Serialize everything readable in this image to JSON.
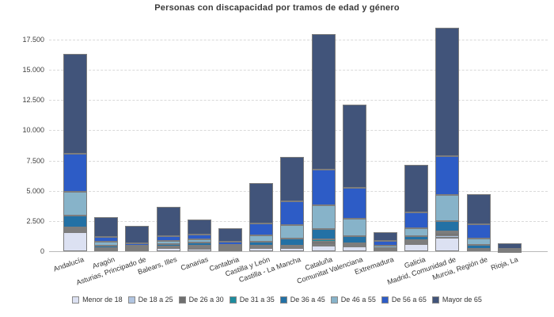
{
  "chart_data": {
    "type": "bar",
    "stacked": true,
    "title": "Personas con discapacidad por tramos de edad y género",
    "legend_position": "bottom",
    "grid": "horizontal-dashed",
    "ylim": [
      0,
      17500
    ],
    "yticks": [
      {
        "value": 0,
        "label": "0"
      },
      {
        "value": 2500,
        "label": "2.500"
      },
      {
        "value": 5000,
        "label": "5.000"
      },
      {
        "value": 7500,
        "label": "7.500"
      },
      {
        "value": 10000,
        "label": "10.000"
      },
      {
        "value": 12500,
        "label": "12.500"
      },
      {
        "value": 15000,
        "label": "15.000"
      },
      {
        "value": 17500,
        "label": "17.500"
      }
    ],
    "categories": [
      "Andalucía",
      "Aragón",
      "Asturias, Principado de",
      "Balears, Illes",
      "Canarias",
      "Cantabria",
      "Castilla y León",
      "Castilla - La Mancha",
      "Cataluña",
      "Comunitat Valenciana",
      "Extremadura",
      "Galicia",
      "Madrid, Comunidad de",
      "Murcia, Región de",
      "Rioja, La"
    ],
    "series": [
      {
        "name": "Menor de 18",
        "color": "#dce1f2",
        "values": [
          1550,
          150,
          130,
          280,
          230,
          130,
          250,
          280,
          480,
          380,
          100,
          560,
          1100,
          120,
          30
        ]
      },
      {
        "name": "De 18 a 25",
        "color": "#b1c5e1",
        "values": [
          150,
          40,
          30,
          40,
          60,
          50,
          60,
          50,
          130,
          90,
          30,
          120,
          200,
          30,
          12
        ]
      },
      {
        "name": "De 26 a 30",
        "color": "#6f6f6f",
        "values": [
          130,
          40,
          30,
          40,
          70,
          40,
          70,
          60,
          175,
          100,
          40,
          120,
          180,
          35,
          65
        ]
      },
      {
        "name": "De 31 a 35",
        "color": "#1e8c9e",
        "values": [
          110,
          40,
          40,
          40,
          75,
          40,
          80,
          70,
          220,
          105,
          30,
          95,
          180,
          35,
          10
        ]
      },
      {
        "name": "De 36 a 45",
        "color": "#2371a5",
        "values": [
          1020,
          180,
          120,
          170,
          265,
          110,
          330,
          590,
          830,
          550,
          60,
          330,
          850,
          285,
          10
        ]
      },
      {
        "name": "De 46 a 55",
        "color": "#87b3c9",
        "values": [
          1930,
          330,
          130,
          285,
          280,
          130,
          505,
          1095,
          1965,
          1460,
          215,
          655,
          2165,
          565,
          10
        ]
      },
      {
        "name": "De 56 a 65",
        "color": "#2d5cc6",
        "values": [
          3150,
          390,
          175,
          415,
          415,
          265,
          1000,
          1965,
          2950,
          2535,
          355,
          1310,
          3190,
          1140,
          60
        ]
      },
      {
        "name": "Mayor de 65",
        "color": "#41547a",
        "values": [
          8280,
          1680,
          1445,
          2385,
          1205,
          1135,
          3345,
          3670,
          11190,
          6925,
          740,
          3970,
          10615,
          2490,
          480
        ]
      }
    ]
  }
}
